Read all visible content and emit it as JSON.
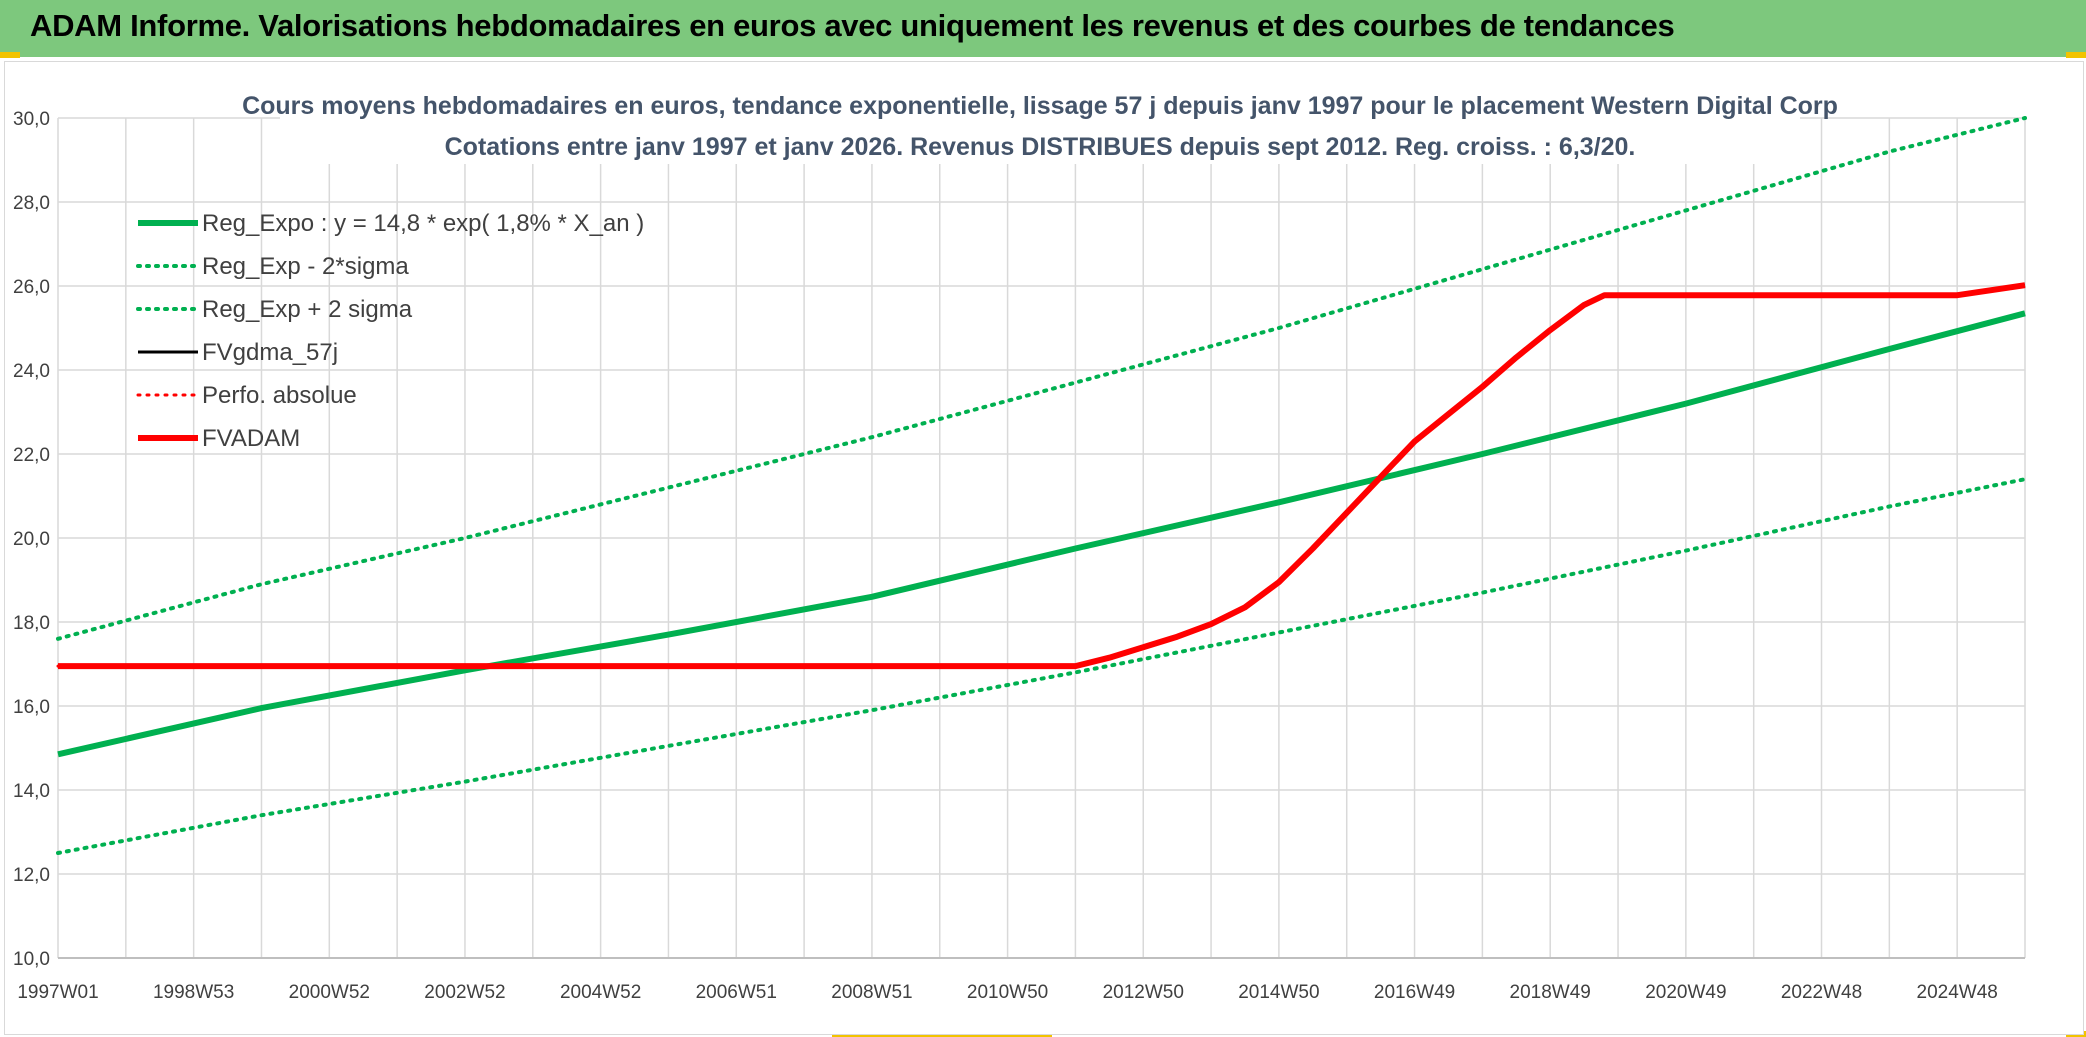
{
  "banner": {
    "title": "ADAM Informe. Valorisations hebdomadaires en euros avec uniquement les revenus et des courbes de tendances"
  },
  "colors": {
    "banner_bg": "#7dc87d",
    "green": "#00b050",
    "red": "#ff0000",
    "black": "#000000",
    "grid": "#d9d9d9",
    "title_text": "#44546a"
  },
  "chart_data": {
    "type": "line",
    "title": "Cours moyens hebdomadaires en euros, tendance exponentielle, lissage 57 j depuis janv 1997 pour le placement Western Digital Corp",
    "subtitle": "Cotations entre janv 1997 et janv 2026. Revenus DISTRIBUES depuis sept 2012. Reg. croiss. : 6,3/20.",
    "xlabel": "",
    "ylabel": "",
    "ylim": [
      10,
      30
    ],
    "y_ticks": [
      "10,0",
      "12,0",
      "14,0",
      "16,0",
      "18,0",
      "20,0",
      "22,0",
      "24,0",
      "26,0",
      "28,0",
      "30,0"
    ],
    "x_ticks": [
      "1997W01",
      "1998W53",
      "2000W52",
      "2002W52",
      "2004W52",
      "2006W51",
      "2008W51",
      "2010W50",
      "2012W50",
      "2014W50",
      "2016W49",
      "2018W49",
      "2020W49",
      "2022W48",
      "2024W48"
    ],
    "x_range": [
      1997.0,
      2026.0
    ],
    "grid": true,
    "legend_position": "top-left",
    "series": [
      {
        "name": "Reg_Expo : y = 14,8 * exp( 1,8% *  X_an )",
        "color": "#00b050",
        "style": "solid",
        "width": 6,
        "x": [
          1997.0,
          2000.0,
          2003.0,
          2006.0,
          2009.0,
          2012.0,
          2015.0,
          2018.0,
          2021.0,
          2024.0,
          2026.0
        ],
        "y": [
          14.85,
          15.95,
          16.85,
          17.7,
          18.6,
          19.75,
          20.85,
          22.0,
          23.2,
          24.5,
          25.35
        ]
      },
      {
        "name": "Reg_Exp - 2*sigma",
        "color": "#00b050",
        "style": "dotted",
        "width": 4,
        "x": [
          1997.0,
          2000.0,
          2003.0,
          2006.0,
          2009.0,
          2012.0,
          2015.0,
          2018.0,
          2021.0,
          2024.0,
          2026.0
        ],
        "y": [
          12.5,
          13.4,
          14.2,
          15.05,
          15.9,
          16.8,
          17.75,
          18.7,
          19.7,
          20.75,
          21.4
        ]
      },
      {
        "name": "Reg_Exp + 2 sigma",
        "color": "#00b050",
        "style": "dotted",
        "width": 4,
        "x": [
          1997.0,
          2000.0,
          2003.0,
          2006.0,
          2009.0,
          2012.0,
          2015.0,
          2018.0,
          2021.0,
          2024.0,
          2026.0
        ],
        "y": [
          17.6,
          18.9,
          20.0,
          21.2,
          22.4,
          23.7,
          25.0,
          26.4,
          27.8,
          29.2,
          30.0
        ]
      },
      {
        "name": "FVgdma_57j",
        "color": "#000000",
        "style": "solid",
        "width": 3,
        "x": [
          1997.0,
          2012.0,
          2012.5,
          2013.0,
          2013.5,
          2014.0,
          2014.5,
          2015.0,
          2015.5,
          2016.0,
          2016.5,
          2017.0,
          2017.5,
          2018.0,
          2018.5,
          2019.0,
          2019.5,
          2019.8,
          2025.0,
          2025.5,
          2026.0
        ],
        "y": [
          16.95,
          16.95,
          17.15,
          17.4,
          17.65,
          17.95,
          18.35,
          18.95,
          19.75,
          20.6,
          21.45,
          22.3,
          22.95,
          23.6,
          24.3,
          24.95,
          25.55,
          25.78,
          25.78,
          25.9,
          26.02
        ]
      },
      {
        "name": "Perfo. absolue",
        "color": "#ff0000",
        "style": "dotted",
        "width": 3,
        "x": [
          1997.0,
          2012.0,
          2012.5,
          2013.0,
          2013.5,
          2014.0,
          2014.5,
          2015.0,
          2015.5,
          2016.0,
          2016.5,
          2017.0,
          2017.5,
          2018.0,
          2018.5,
          2019.0,
          2019.5,
          2019.8,
          2025.0,
          2025.5,
          2026.0
        ],
        "y": [
          16.95,
          16.95,
          17.15,
          17.4,
          17.65,
          17.95,
          18.35,
          18.95,
          19.75,
          20.6,
          21.45,
          22.3,
          22.95,
          23.6,
          24.3,
          24.95,
          25.55,
          25.78,
          25.78,
          25.9,
          26.02
        ]
      },
      {
        "name": "FVADAM",
        "color": "#ff0000",
        "style": "solid",
        "width": 6,
        "x": [
          1997.0,
          2012.0,
          2012.5,
          2013.0,
          2013.5,
          2014.0,
          2014.5,
          2015.0,
          2015.5,
          2016.0,
          2016.5,
          2017.0,
          2017.5,
          2018.0,
          2018.5,
          2019.0,
          2019.5,
          2019.8,
          2025.0,
          2025.5,
          2026.0
        ],
        "y": [
          16.95,
          16.95,
          17.15,
          17.4,
          17.65,
          17.95,
          18.35,
          18.95,
          19.75,
          20.6,
          21.45,
          22.3,
          22.95,
          23.6,
          24.3,
          24.95,
          25.55,
          25.78,
          25.78,
          25.9,
          26.02
        ]
      }
    ]
  }
}
